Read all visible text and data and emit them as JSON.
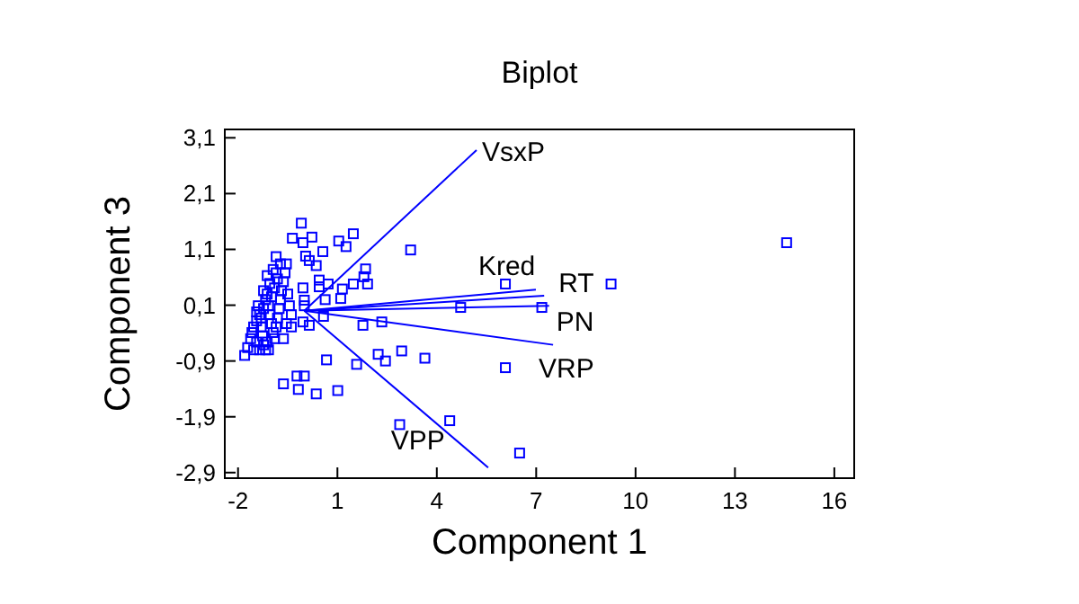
{
  "chart_data": {
    "type": "scatter",
    "title": "Biplot",
    "xlabel": "Component 1",
    "ylabel": "Component 3",
    "xlim": [
      -2.4,
      16.6
    ],
    "ylim": [
      -3.0,
      3.25
    ],
    "xticks": [
      -2,
      1,
      4,
      7,
      10,
      13,
      16
    ],
    "yticks": [
      {
        "value": 3.1,
        "label": "3,1"
      },
      {
        "value": 2.1,
        "label": "2,1"
      },
      {
        "value": 1.1,
        "label": "1,1"
      },
      {
        "value": 0.1,
        "label": "0,1"
      },
      {
        "value": -0.9,
        "label": "-0,9"
      },
      {
        "value": -1.9,
        "label": "-1,9"
      },
      {
        "value": -2.9,
        "label": "-2,9"
      }
    ],
    "grid": false,
    "marker": "square",
    "series": [
      {
        "color": "#0000ff",
        "x": [
          -0.09,
          -0.36,
          -0.04,
          0.23,
          1.04,
          1.26,
          1.48,
          3.21,
          0.04,
          0.15,
          0.36,
          0.56,
          -0.85,
          14.56,
          9.26,
          6.07,
          1.85,
          1.8,
          1.91,
          1.48,
          1.15,
          1.1,
          0.72,
          0.45,
          0.45,
          -0.04,
          0,
          0,
          0.63,
          4.72,
          7.17,
          -0.04,
          0.15,
          1.77,
          2.34,
          0.58,
          0.67,
          1.58,
          2.23,
          2.45,
          2.94,
          3.64,
          6.07,
          -0.63,
          -0.22,
          0,
          -0.18,
          0.36,
          1.01,
          2.88,
          4.39,
          6.5,
          -1.8,
          -1.71,
          -1.62,
          -1.58,
          -1.53,
          -1.44,
          -1.44,
          -1.39,
          -1.35,
          -1.3,
          -1.26,
          -1.23,
          -1.17,
          -1.12,
          -1.08,
          -1.35,
          -1.53,
          -1.44,
          -1.3,
          -1.23,
          -1.17,
          -1.12,
          -1.08,
          -1.04,
          -0.99,
          -0.94,
          -0.9,
          -0.85,
          -0.81,
          -0.76,
          -0.72,
          -0.69,
          -0.63,
          -0.58,
          -0.54,
          -0.5,
          -0.45,
          -0.39,
          -0.63,
          -0.99,
          -0.9,
          -0.81,
          -0.94,
          -0.72,
          -0.85,
          -0.39,
          -0.54,
          -1.04,
          -1.12,
          -1.23
        ],
        "values": [
          1.57,
          1.3,
          1.22,
          1.32,
          1.25,
          1.15,
          1.38,
          1.09,
          0.98,
          0.9,
          0.81,
          1.06,
          0.97,
          1.22,
          0.48,
          0.48,
          0.75,
          0.61,
          0.48,
          0.48,
          0.39,
          0.22,
          0.48,
          0.55,
          0.43,
          0.41,
          0.19,
          0.09,
          0.2,
          0.06,
          0.06,
          -0.2,
          -0.26,
          -0.26,
          -0.2,
          -0.1,
          -0.88,
          -0.96,
          -0.78,
          -0.9,
          -0.72,
          -0.85,
          -1.02,
          -1.31,
          -1.17,
          -1.17,
          -1.41,
          -1.49,
          -1.43,
          -2.04,
          -1.97,
          -2.55,
          -0.8,
          -0.66,
          -0.5,
          -0.39,
          -0.29,
          -0.18,
          -0.02,
          0.09,
          -0.07,
          -0.29,
          -0.45,
          -0.61,
          -0.7,
          -0.56,
          -0.7,
          -0.7,
          -0.7,
          -0.56,
          -0.13,
          0.04,
          0.2,
          0.3,
          0.09,
          -0.07,
          -0.23,
          -0.39,
          -0.5,
          -0.29,
          -0.13,
          0.04,
          0.2,
          0.36,
          0.52,
          0.68,
          0.84,
          0.3,
          0.09,
          -0.07,
          -0.5,
          0.25,
          0.41,
          0.57,
          0.74,
          0.84,
          0.68,
          -0.29,
          -0.23,
          0.49,
          0.63,
          0.36
        ]
      },
      {
        "type": "line",
        "marker": "none",
        "name": "VsxP",
        "color": "#0000ff",
        "x": [
          0,
          5.2
        ],
        "values": [
          0,
          2.88
        ]
      },
      {
        "type": "line",
        "marker": "none",
        "name": "Kred",
        "color": "#0000ff",
        "x": [
          0,
          6.99
        ],
        "values": [
          0,
          0.38
        ]
      },
      {
        "type": "line",
        "marker": "none",
        "name": "RT",
        "color": "#0000ff",
        "x": [
          0,
          7.24
        ],
        "values": [
          0,
          0.27
        ]
      },
      {
        "type": "line",
        "marker": "none",
        "name": "PN",
        "color": "#0000ff",
        "x": [
          0,
          7.39
        ],
        "values": [
          0,
          0.09
        ]
      },
      {
        "type": "line",
        "marker": "none",
        "name": "VRP",
        "color": "#0000ff",
        "x": [
          0,
          7.51
        ],
        "values": [
          0,
          -0.61
        ]
      },
      {
        "type": "line",
        "marker": "none",
        "name": "VPP",
        "color": "#0000ff",
        "x": [
          0,
          5.55
        ],
        "values": [
          0,
          -2.81
        ]
      }
    ]
  }
}
